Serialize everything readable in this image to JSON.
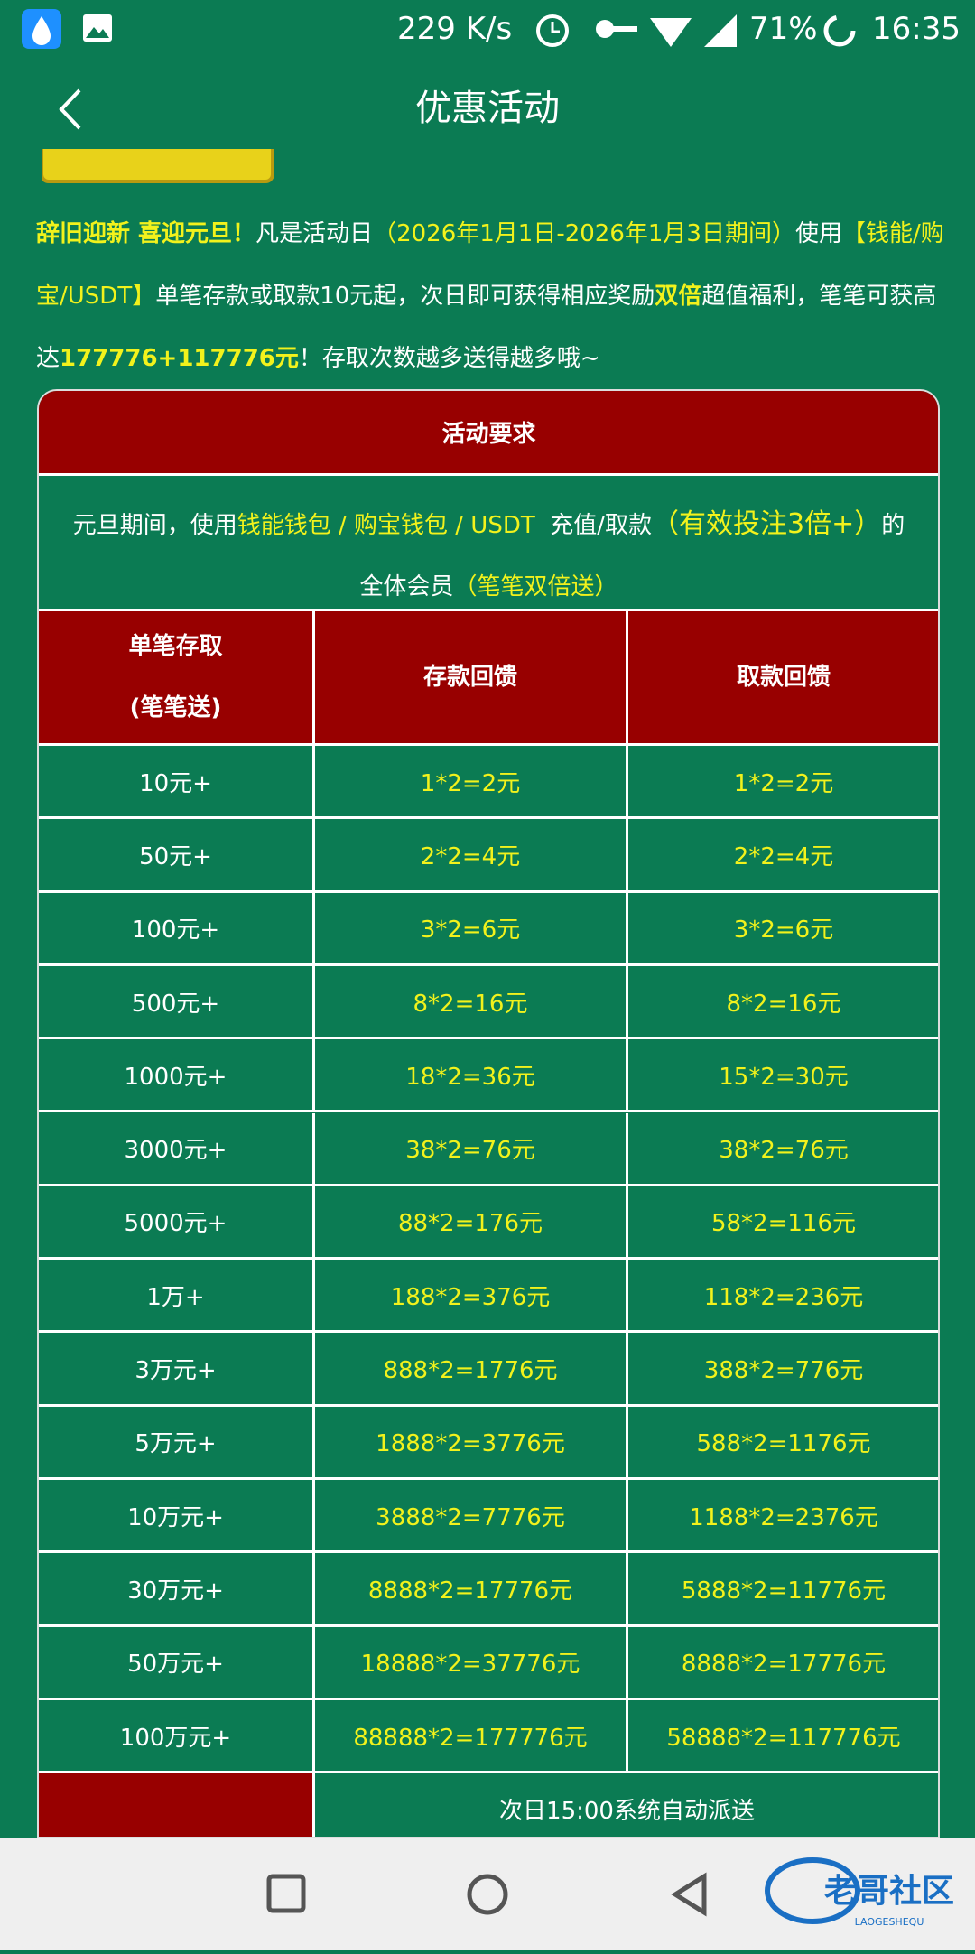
{
  "status_bar": {
    "speed": "229 K/s",
    "battery": "71%",
    "time": "16:35"
  },
  "header": {
    "title": "优惠活动"
  },
  "intro": {
    "segments": [
      "辞旧迎新 喜迎元旦！",
      "凡是活动日",
      "（2026年1月1日-2026年1月3日期间）",
      "使用",
      "【钱能/购宝/USDT】",
      "单笔存款或取款10元起，次日即可获得相应奖励",
      "双倍",
      "超值福利，笔笔可获高达",
      "177776+117776元",
      "！存取次数越多送得越多哦~"
    ]
  },
  "table": {
    "title": "活动要求",
    "requirement": [
      "元旦期间，使用",
      "钱能钱包 / 购宝钱包 / USDT",
      "充值/取款",
      "（有效投注3倍+）",
      "的",
      "全体会员",
      "（笔笔双倍送）"
    ],
    "columns": [
      [
        "单笔存取",
        "(笔笔送)"
      ],
      [
        "存款回馈"
      ],
      [
        "取款回馈"
      ]
    ],
    "rows": [
      [
        "10元+",
        "1*2=2元",
        "1*2=2元"
      ],
      [
        "50元+",
        "2*2=4元",
        "2*2=4元"
      ],
      [
        "100元+",
        "3*2=6元",
        "3*2=6元"
      ],
      [
        "500元+",
        "8*2=16元",
        "8*2=16元"
      ],
      [
        "1000元+",
        "18*2=36元",
        "15*2=30元"
      ],
      [
        "3000元+",
        "38*2=76元",
        "38*2=76元"
      ],
      [
        "5000元+",
        "88*2=176元",
        "58*2=116元"
      ],
      [
        "1万+",
        "188*2=376元",
        "118*2=236元"
      ],
      [
        "3万元+",
        "888*2=1776元",
        "388*2=776元"
      ],
      [
        "5万元+",
        "1888*2=3776元",
        "588*2=1176元"
      ],
      [
        "10万元+",
        "3888*2=7776元",
        "1188*2=2376元"
      ],
      [
        "30万元+",
        "8888*2=17776元",
        "5888*2=11776元"
      ],
      [
        "50万元+",
        "18888*2=37776元",
        "8888*2=17776元"
      ],
      [
        "100万元+",
        "88888*2=177776元",
        "58888*2=117776元"
      ]
    ],
    "footer": "次日15:00系统自动派送"
  },
  "watermark": {
    "name": "老哥社区",
    "pinyin": "LAOGESHEQU"
  }
}
